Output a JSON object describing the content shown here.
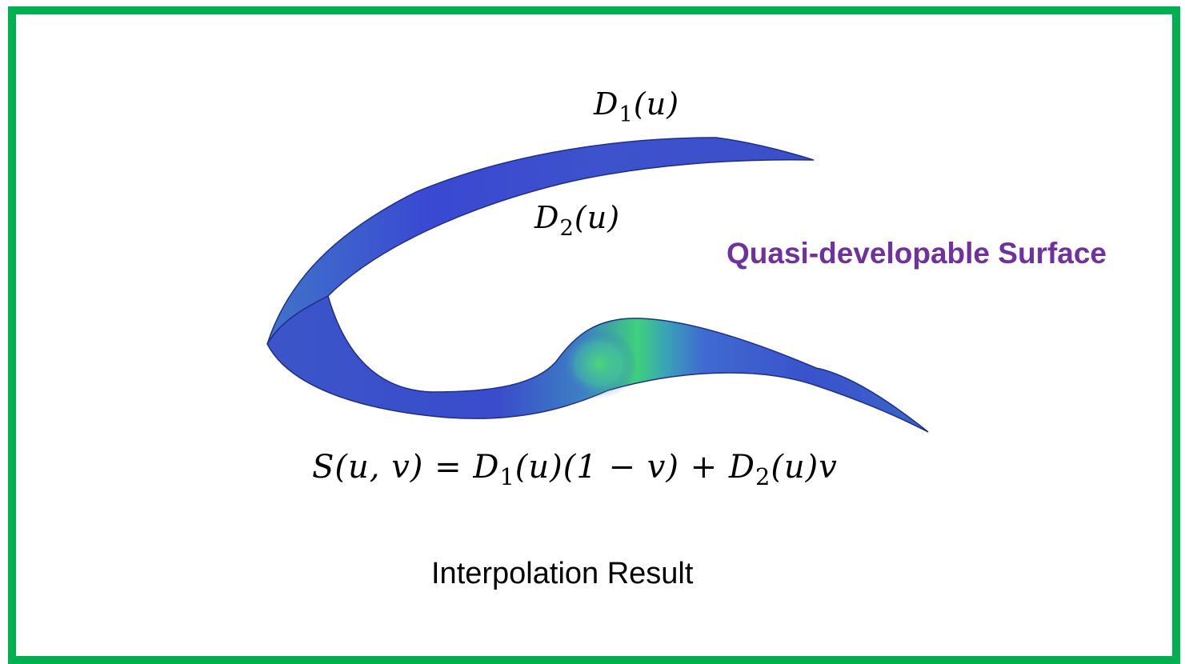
{
  "labels": {
    "d1": {
      "symbol": "D",
      "sub": "1",
      "arg": "(u)"
    },
    "d2": {
      "symbol": "D",
      "sub": "2",
      "arg": "(u)"
    }
  },
  "title": "Quasi-developable Surface",
  "formula": {
    "lhs": "S(u, v)",
    "equals": "=",
    "term1_symbol": "D",
    "term1_sub": "1",
    "term1_rest": "(u)(1 − v)",
    "plus": "+",
    "term2_symbol": "D",
    "term2_sub": "2",
    "term2_rest": "(u)v"
  },
  "caption": "Interpolation Result",
  "colors": {
    "frame": "#00b050",
    "surface_main": "#3a50cf",
    "surface_highlight": "#3ed27a",
    "title": "#7030a0"
  }
}
